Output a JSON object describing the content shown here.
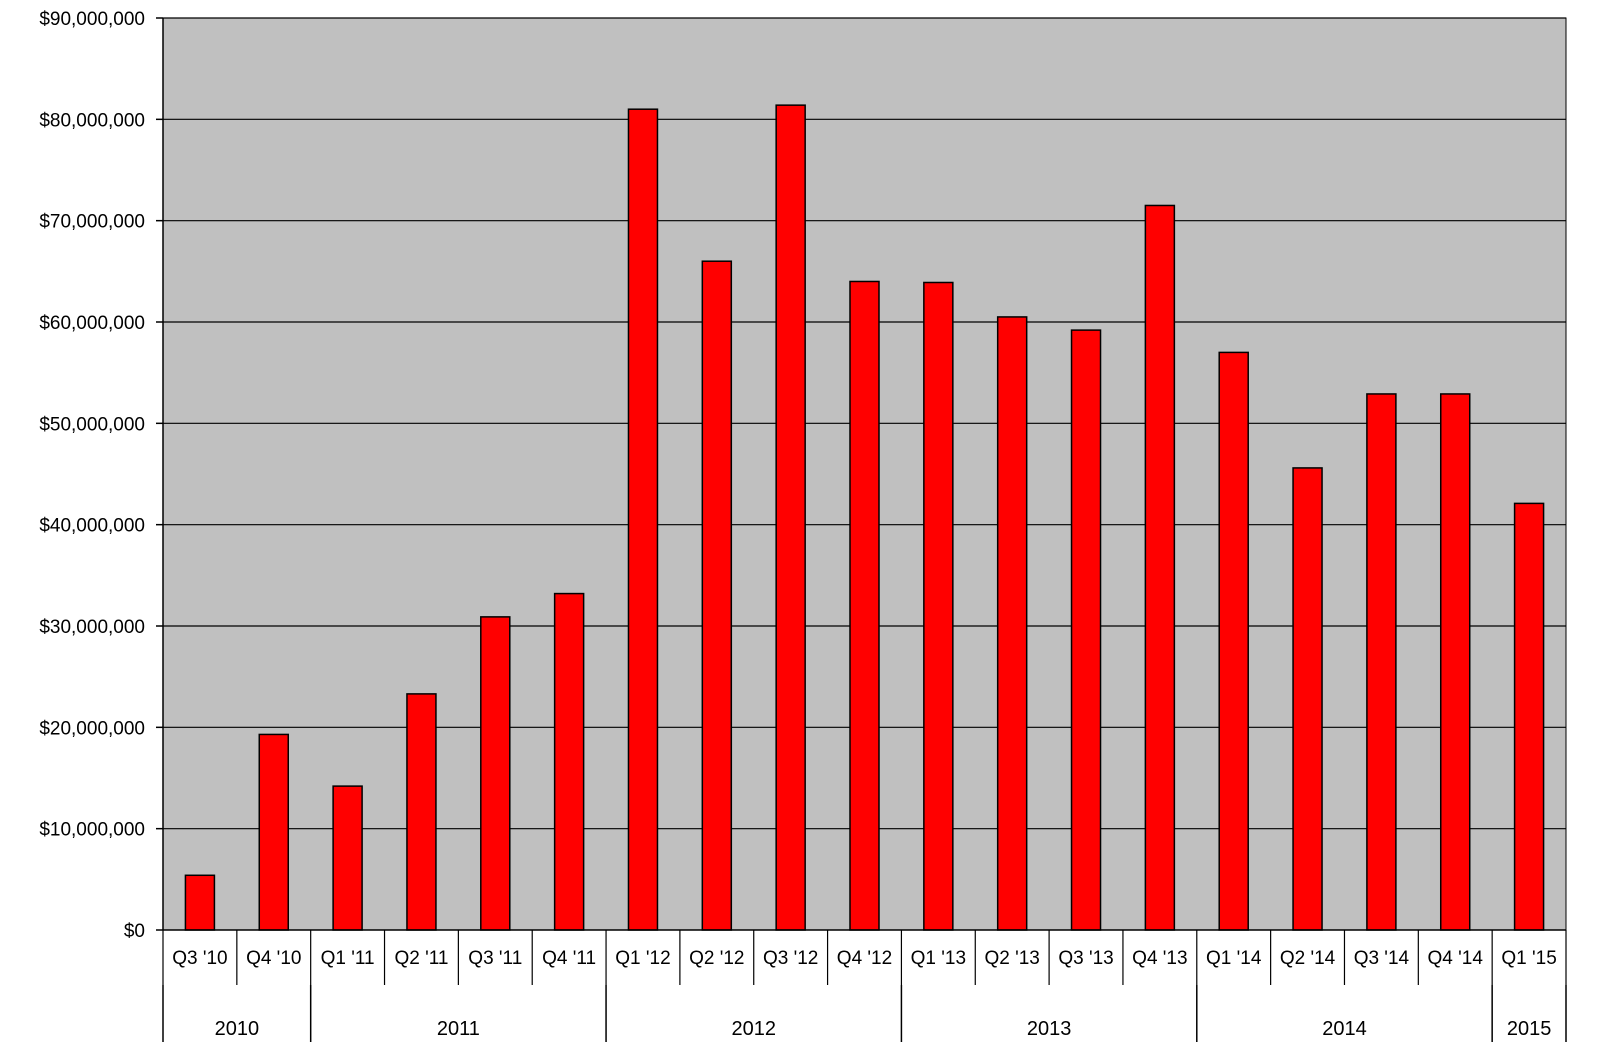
{
  "chart_data": {
    "type": "bar",
    "title": "",
    "xlabel": "",
    "ylabel": "",
    "ylim": [
      0,
      90000000
    ],
    "yticks": [
      0,
      10000000,
      20000000,
      30000000,
      40000000,
      50000000,
      60000000,
      70000000,
      80000000,
      90000000
    ],
    "ytick_labels": [
      "$0",
      "$10,000,000",
      "$20,000,000",
      "$30,000,000",
      "$40,000,000",
      "$50,000,000",
      "$60,000,000",
      "$70,000,000",
      "$80,000,000",
      "$90,000,000"
    ],
    "grid": true,
    "legend": "none",
    "categories": [
      "Q3 '10",
      "Q4 '10",
      "Q1 '11",
      "Q2 '11",
      "Q3 '11",
      "Q4 '11",
      "Q1 '12",
      "Q2 '12",
      "Q3 '12",
      "Q4 '12",
      "Q1 '13",
      "Q2 '13",
      "Q3 '13",
      "Q4 '13",
      "Q1 '14",
      "Q2 '14",
      "Q3 '14",
      "Q4 '14",
      "Q1 '15"
    ],
    "values": [
      5400000,
      19300000,
      14200000,
      23300000,
      30900000,
      33200000,
      81000000,
      66000000,
      81400000,
      64000000,
      63900000,
      60500000,
      59200000,
      71500000,
      57000000,
      45600000,
      52900000,
      52900000,
      42100000
    ],
    "year_groups": [
      {
        "label": "2010",
        "count": 2
      },
      {
        "label": "2011",
        "count": 4
      },
      {
        "label": "2012",
        "count": 4
      },
      {
        "label": "2013",
        "count": 4
      },
      {
        "label": "2014",
        "count": 4
      },
      {
        "label": "2015",
        "count": 1
      }
    ],
    "colors": {
      "bar": "#ff0000",
      "bar_stroke": "#000000",
      "plot_background": "#c0c0c0",
      "gridline": "#000000"
    }
  }
}
